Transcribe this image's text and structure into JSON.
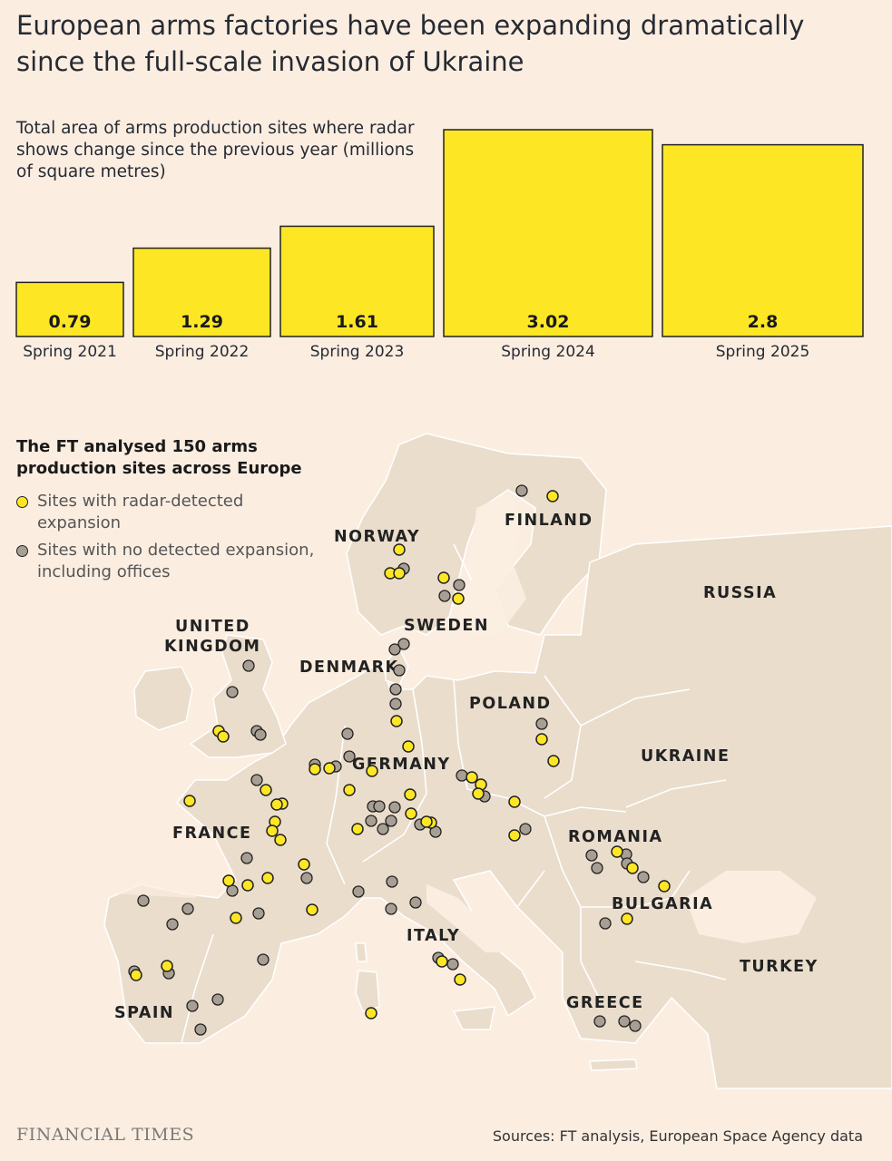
{
  "title": "European arms factories have been expanding dramatically since the full-scale invasion of Ukraine",
  "chart_data": [
    {
      "type": "bar",
      "title": "Total area of arms production sites where radar shows change since the previous year (millions of square metres)",
      "categories": [
        "Spring 2021",
        "Spring 2022",
        "Spring 2023",
        "Spring 2024",
        "Spring 2025"
      ],
      "values": [
        0.79,
        1.29,
        1.61,
        3.02,
        2.8
      ],
      "value_labels": [
        "0.79",
        "1.29",
        "1.61",
        "3.02",
        "2.8"
      ],
      "color": "#fde725",
      "stroke": "#222222",
      "ylim": [
        0,
        3.02
      ],
      "grid": false
    },
    {
      "type": "map",
      "legend_title": "The FT analysed 150 arms production sites across Europe",
      "legend": [
        {
          "label": "Sites with radar-detected expansion",
          "color": "#fde725"
        },
        {
          "label": "Sites with no detected expansion, including offices",
          "color": "#a89f94"
        }
      ],
      "country_labels": [
        "NORWAY",
        "FINLAND",
        "RUSSIA",
        "SWEDEN",
        "UNITED KINGDOM",
        "DENMARK",
        "POLAND",
        "GERMANY",
        "UKRAINE",
        "FRANCE",
        "ROMANIA",
        "BULGARIA",
        "ITALY",
        "TURKEY",
        "SPAIN",
        "GREECE"
      ]
    }
  ],
  "footer": {
    "logo": "FINANCIAL TIMES",
    "source": "Sources: FT analysis, European Space Agency data"
  },
  "colors": {
    "background": "#fbeee1",
    "land": "#eaddcc",
    "border": "#ffffff",
    "yellow": "#fde725",
    "grey_dot": "#a89f94"
  }
}
